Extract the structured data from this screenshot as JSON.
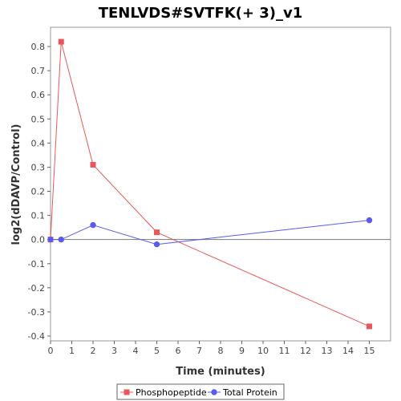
{
  "chart_data": {
    "type": "line",
    "title": "TENLVDS#SVTFK(+ 3)_v1",
    "xlabel": "Time (minutes)",
    "ylabel": "log2(dDAVP/Control)",
    "xlim": [
      0,
      16
    ],
    "ylim": [
      -0.42,
      0.88
    ],
    "x_ticks": [
      0,
      1,
      2,
      3,
      4,
      5,
      6,
      7,
      8,
      9,
      10,
      11,
      12,
      13,
      14,
      15
    ],
    "y_ticks": [
      -0.4,
      -0.3,
      -0.2,
      -0.1,
      0.0,
      0.1,
      0.2,
      0.3,
      0.4,
      0.5,
      0.6,
      0.7,
      0.8
    ],
    "y_tick_labels": [
      "-0.4",
      "-0.3",
      "-0.2",
      "-0.1",
      "0.0",
      "0.1",
      "0.2",
      "0.3",
      "0.4",
      "0.5",
      "0.6",
      "0.7",
      "0.8"
    ],
    "grid": false,
    "zero_line": true,
    "legend_position": "bottom",
    "series": [
      {
        "name": "Phosphopeptide",
        "color": "#e8585a",
        "marker": "square",
        "points": [
          [
            0,
            0.0
          ],
          [
            0.5,
            0.82
          ],
          [
            2,
            0.31
          ],
          [
            5,
            0.03
          ],
          [
            15,
            -0.36
          ]
        ]
      },
      {
        "name": "Total Protein",
        "color": "#5a5aee",
        "marker": "circle",
        "points": [
          [
            0,
            0.0
          ],
          [
            0.5,
            0.0
          ],
          [
            2,
            0.06
          ],
          [
            5,
            -0.02
          ],
          [
            15,
            0.08
          ]
        ]
      }
    ]
  }
}
